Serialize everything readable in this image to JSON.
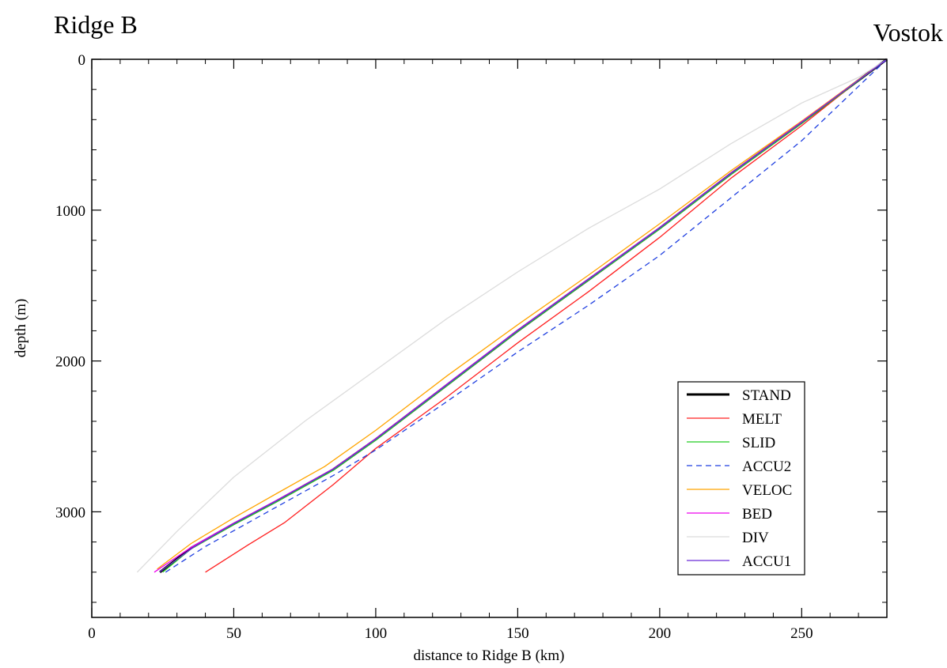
{
  "chart_data": {
    "type": "line",
    "title": "",
    "corner_labels": {
      "left": "Ridge B",
      "right": "Vostok"
    },
    "xlabel": "distance to Ridge B (km)",
    "ylabel": "depth (m)",
    "xlim": [
      0,
      280
    ],
    "ylim": [
      3700,
      0
    ],
    "y_inverted": true,
    "x_ticks": [
      "0",
      "50",
      "100",
      "150",
      "200",
      "250"
    ],
    "x_tick_values": [
      0,
      50,
      100,
      150,
      200,
      250
    ],
    "y_ticks": [
      "0",
      "1000",
      "2000",
      "3000"
    ],
    "y_tick_values": [
      0,
      1000,
      2000,
      3000
    ],
    "grid": false,
    "legend_position": "bottom-right",
    "series": [
      {
        "name": "STAND",
        "color": "#000000",
        "dash": "solid",
        "width": 3,
        "x": [
          24,
          35,
          50,
          65,
          85,
          100,
          125,
          150,
          175,
          200,
          225,
          250,
          270,
          280
        ],
        "y": [
          3400,
          3240,
          3080,
          2930,
          2720,
          2520,
          2160,
          1800,
          1460,
          1120,
          760,
          420,
          140,
          0
        ]
      },
      {
        "name": "MELT",
        "color": "#ff2020",
        "dash": "solid",
        "width": 1.3,
        "x": [
          40,
          55,
          68,
          85,
          100,
          125,
          150,
          175,
          200,
          225,
          250,
          270,
          280
        ],
        "y": [
          3400,
          3220,
          3070,
          2820,
          2580,
          2240,
          1880,
          1540,
          1180,
          790,
          440,
          140,
          0
        ]
      },
      {
        "name": "SLID",
        "color": "#22cc22",
        "dash": "solid",
        "width": 1.3,
        "x": [
          25,
          35,
          50,
          65,
          85,
          100,
          125,
          150,
          175,
          200,
          225,
          250,
          270,
          280
        ],
        "y": [
          3400,
          3245,
          3085,
          2935,
          2725,
          2525,
          2165,
          1805,
          1465,
          1125,
          765,
          425,
          142,
          0
        ]
      },
      {
        "name": "ACCU2",
        "color": "#1f3fe0",
        "dash": "dashed",
        "width": 1.3,
        "x": [
          26,
          40,
          62,
          85,
          100,
          125,
          150,
          175,
          200,
          225,
          250,
          270,
          280
        ],
        "y": [
          3400,
          3230,
          3000,
          2760,
          2590,
          2270,
          1940,
          1630,
          1300,
          920,
          540,
          180,
          0
        ]
      },
      {
        "name": "VELOC",
        "color": "#ffa500",
        "dash": "solid",
        "width": 1.3,
        "x": [
          23,
          35,
          50,
          65,
          82,
          100,
          125,
          150,
          175,
          200,
          225,
          250,
          270,
          280
        ],
        "y": [
          3380,
          3210,
          3040,
          2880,
          2700,
          2460,
          2100,
          1760,
          1430,
          1090,
          740,
          410,
          135,
          0
        ]
      },
      {
        "name": "BED",
        "color": "#ee00ee",
        "dash": "solid",
        "width": 1.3,
        "x": [
          22,
          35,
          50,
          65,
          85,
          100,
          125,
          150,
          175,
          200,
          225,
          250,
          270,
          280
        ],
        "y": [
          3400,
          3235,
          3075,
          2925,
          2715,
          2515,
          2155,
          1795,
          1455,
          1115,
          755,
          415,
          138,
          0
        ]
      },
      {
        "name": "DIV",
        "color": "#dcdcdc",
        "dash": "solid",
        "width": 1.3,
        "x": [
          16,
          30,
          50,
          75,
          100,
          125,
          150,
          175,
          200,
          225,
          250,
          270,
          280
        ],
        "y": [
          3400,
          3130,
          2770,
          2400,
          2060,
          1720,
          1410,
          1120,
          860,
          560,
          290,
          120,
          0
        ]
      },
      {
        "name": "ACCU1",
        "color": "#6a2ad8",
        "dash": "solid",
        "width": 1.3,
        "x": [
          24,
          36,
          50,
          65,
          85,
          100,
          125,
          150,
          175,
          200,
          225,
          250,
          270,
          280
        ],
        "y": [
          3398,
          3232,
          3078,
          2928,
          2718,
          2518,
          2158,
          1798,
          1458,
          1118,
          758,
          418,
          139,
          0
        ]
      }
    ]
  }
}
